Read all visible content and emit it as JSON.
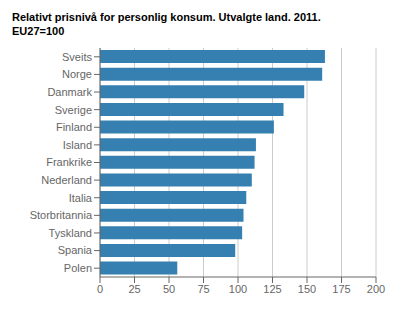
{
  "chart_data": {
    "type": "bar",
    "title": "Relativt prisnivå for personlig konsum. Utvalgte land. 2011.",
    "subtitle": "EU27=100",
    "categories": [
      "Sveits",
      "Norge",
      "Danmark",
      "Sverige",
      "Finland",
      "Island",
      "Frankrike",
      "Nederland",
      "Italia",
      "Storbritannia",
      "Tyskland",
      "Spania",
      "Polen"
    ],
    "values": [
      163,
      161,
      148,
      133,
      126,
      113,
      112,
      110,
      106,
      104,
      103,
      98,
      56
    ],
    "color": "#3580B0",
    "orientation": "horizontal",
    "xlim": [
      0,
      200
    ],
    "xticks": [
      0,
      25,
      50,
      75,
      100,
      125,
      150,
      175,
      200
    ],
    "grid": true
  }
}
